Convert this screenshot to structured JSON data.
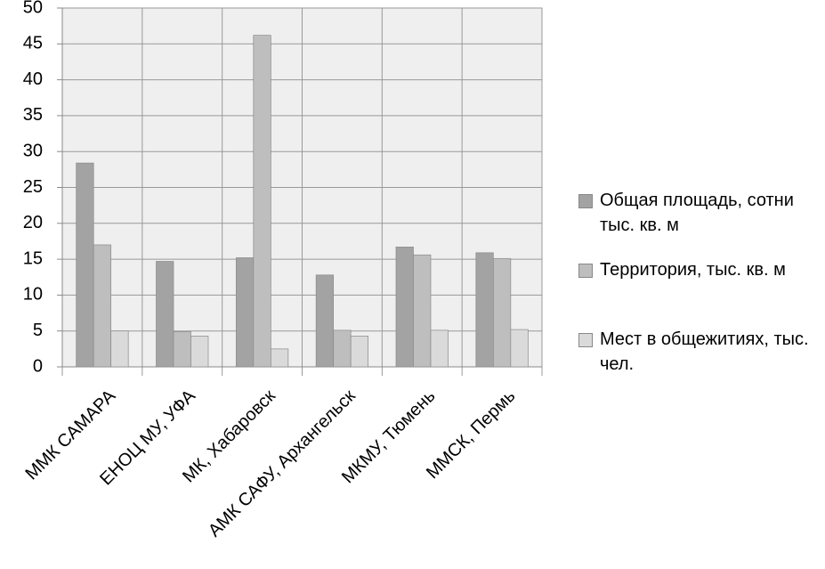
{
  "chart_data": {
    "type": "bar",
    "categories": [
      "ММК САМАРА",
      "ЕНОЦ МУ, УФА",
      "МК, Хабаровск",
      "АМК САФУ, Архангельск",
      "МКМУ, Тюмень",
      "ММСК, Пермь"
    ],
    "series": [
      {
        "name": "Общая площадь, сотни тыс. кв. м",
        "color": "#a3a3a3",
        "values": [
          28.4,
          14.7,
          15.2,
          12.8,
          16.7,
          15.9
        ]
      },
      {
        "name": "Территория, тыс. кв. м",
        "color": "#bebebe",
        "values": [
          17.0,
          4.9,
          46.2,
          5.1,
          15.6,
          15.1
        ]
      },
      {
        "name": "Мест в общежитиях, тыс. чел.",
        "color": "#dadada",
        "values": [
          5.0,
          4.3,
          2.5,
          4.3,
          5.1,
          5.2
        ]
      }
    ],
    "ylim": [
      0,
      50
    ],
    "yticks": [
      0,
      5,
      10,
      15,
      20,
      25,
      30,
      35,
      40,
      45,
      50
    ],
    "grid": true,
    "legend": "right"
  }
}
